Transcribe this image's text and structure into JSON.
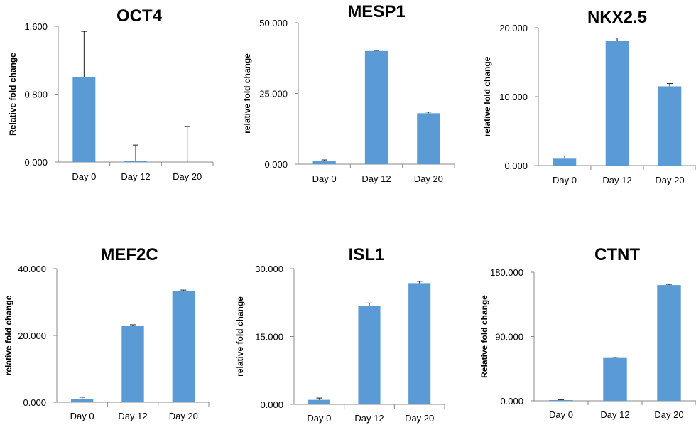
{
  "chart_data": [
    {
      "type": "bar",
      "title": "OCT4",
      "ylabel": "Relative fold change",
      "categories": [
        "Day 0",
        "Day 12",
        "Day 20"
      ],
      "values": [
        1.0,
        0.01,
        0.0
      ],
      "error": [
        0.54,
        0.19,
        0.42
      ],
      "ylim": [
        0,
        1.6
      ],
      "yticks": [
        "0.000",
        "0.800",
        "1.600"
      ],
      "color": "#5b9bd5"
    },
    {
      "type": "bar",
      "title": "MESP1",
      "ylabel": "relative fold change",
      "categories": [
        "Day 0",
        "Day 12",
        "Day 20"
      ],
      "values": [
        1.0,
        40.0,
        18.0
      ],
      "error": [
        0.5,
        0.2,
        0.4
      ],
      "ylim": [
        0,
        50
      ],
      "yticks": [
        "0.000",
        "25.000",
        "50.000"
      ],
      "color": "#5b9bd5"
    },
    {
      "type": "bar",
      "title": "NKX2.5",
      "ylabel": "relative fold change",
      "categories": [
        "Day 0",
        "Day 12",
        "Day 20"
      ],
      "values": [
        1.0,
        18.1,
        11.5
      ],
      "error": [
        0.4,
        0.4,
        0.4
      ],
      "ylim": [
        0,
        20
      ],
      "yticks": [
        "0.000",
        "10.000",
        "20.000"
      ],
      "color": "#5b9bd5"
    },
    {
      "type": "bar",
      "title": "MEF2C",
      "ylabel": "relative fold change",
      "categories": [
        "Day 0",
        "Day 12",
        "Day 20"
      ],
      "values": [
        1.0,
        22.8,
        33.4
      ],
      "error": [
        0.5,
        0.4,
        0.2
      ],
      "ylim": [
        0,
        40
      ],
      "yticks": [
        "0.000",
        "20.000",
        "40.000"
      ],
      "color": "#5b9bd5"
    },
    {
      "type": "bar",
      "title": "ISL1",
      "ylabel": "relative fold change",
      "categories": [
        "Day 0",
        "Day 12",
        "Day 20"
      ],
      "values": [
        1.0,
        21.8,
        26.8
      ],
      "error": [
        0.4,
        0.6,
        0.4
      ],
      "ylim": [
        0,
        30
      ],
      "yticks": [
        "0.000",
        "15.000",
        "30.000"
      ],
      "color": "#5b9bd5"
    },
    {
      "type": "bar",
      "title": "CTNT",
      "ylabel": "Relative fold change",
      "categories": [
        "Day 0",
        "Day 12",
        "Day 20"
      ],
      "values": [
        1.0,
        60.0,
        162.0
      ],
      "error": [
        0.6,
        1.0,
        1.0
      ],
      "ylim": [
        0,
        180
      ],
      "yticks": [
        "0.000",
        "90.000",
        "180.000"
      ],
      "color": "#5b9bd5"
    }
  ]
}
